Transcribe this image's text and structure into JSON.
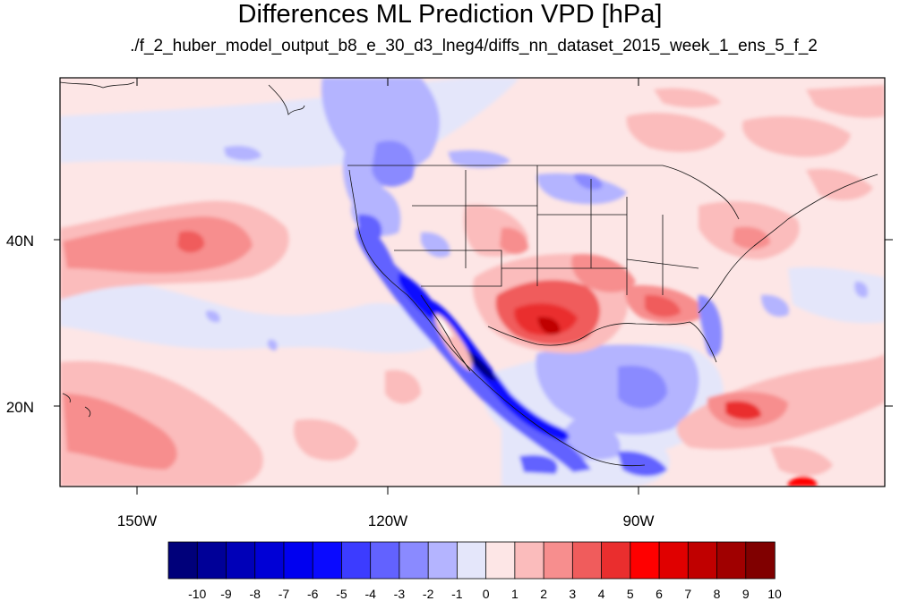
{
  "title": "Differences ML Prediction VPD [hPa]",
  "subtitle": "./f_2_huber_model_output_b8_e_30_d3_lneg4/diffs_nn_dataset_2015_week_1_ens_5_f_2",
  "map": {
    "lon_ticks": [
      "150W",
      "120W",
      "90W"
    ],
    "lat_ticks": [
      "40N",
      "20N"
    ]
  },
  "colorbar": {
    "labels": [
      "-10",
      "-9",
      "-8",
      "-7",
      "-6",
      "-5",
      "-4",
      "-3",
      "-2",
      "-1",
      "0",
      "1",
      "2",
      "3",
      "4",
      "5",
      "6",
      "7",
      "8",
      "9",
      "10"
    ],
    "colors": [
      "#00007a",
      "#000098",
      "#0000b8",
      "#0000d6",
      "#0000f0",
      "#0a0aff",
      "#3c3cff",
      "#6262ff",
      "#8a8aff",
      "#b4b4ff",
      "#e4e6fa",
      "#fde6e6",
      "#fbbcbc",
      "#f78e8e",
      "#f05c5c",
      "#ea2e2e",
      "#ff0000",
      "#e00000",
      "#c00000",
      "#a00000",
      "#800000"
    ]
  }
}
